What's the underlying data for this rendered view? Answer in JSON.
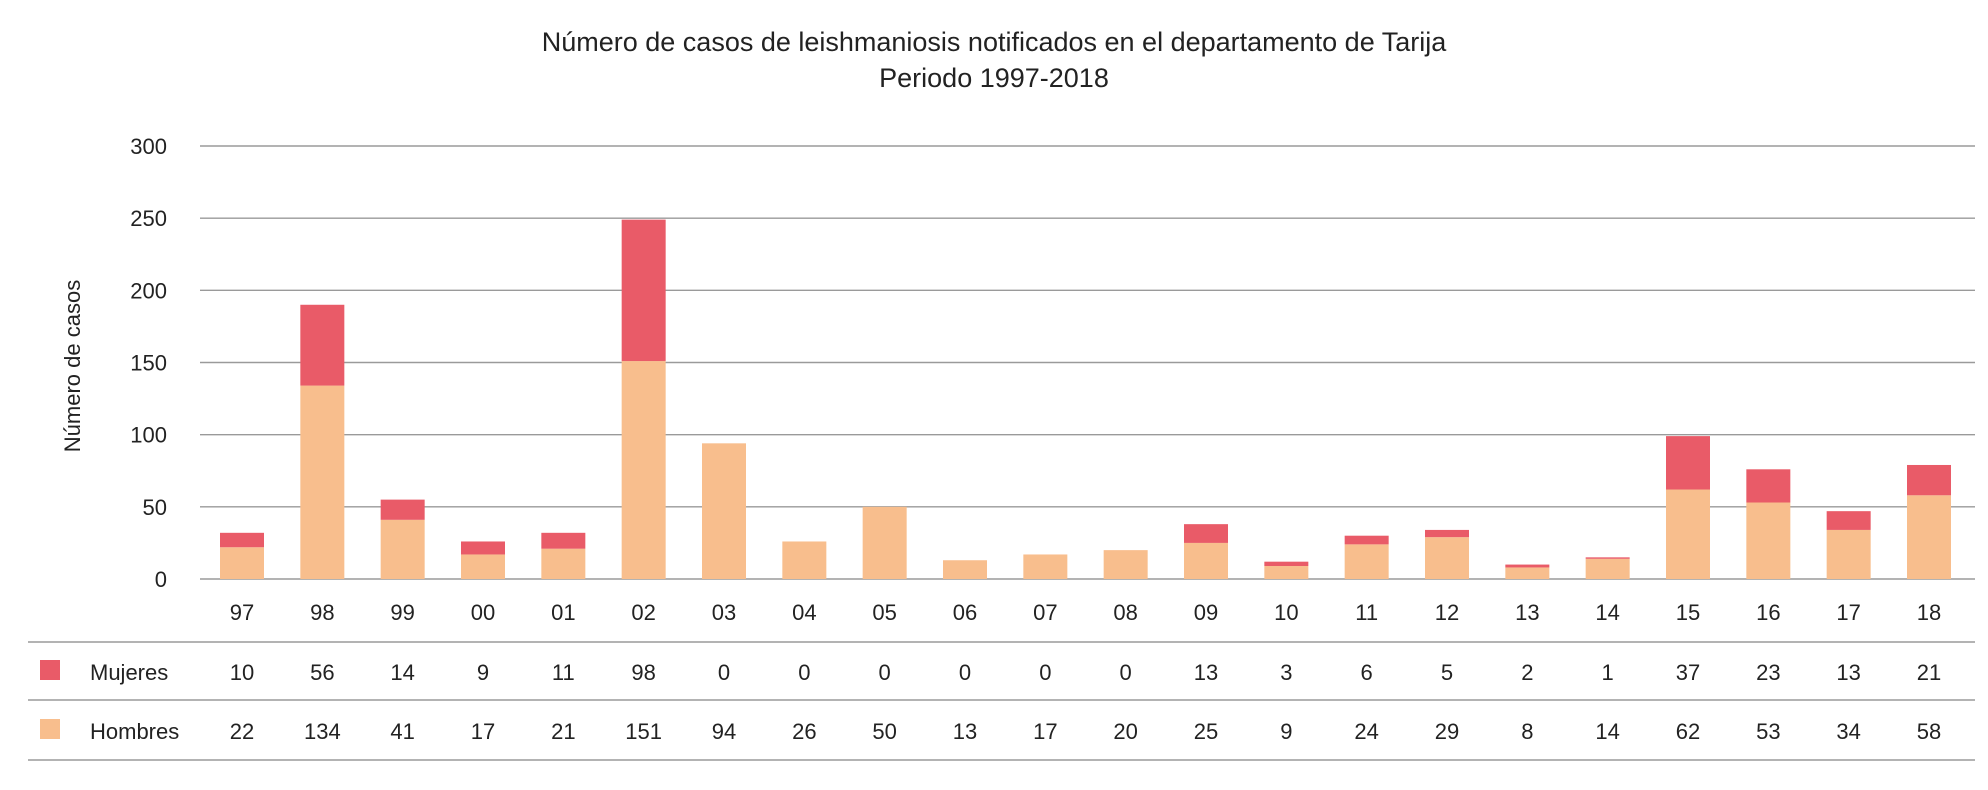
{
  "chart_data": {
    "type": "bar",
    "stacked": true,
    "title": "Número de casos de leishmaniosis notificados en el departamento de Tarija",
    "subtitle": "Periodo 1997-2018",
    "xlabel": "",
    "ylabel": "Número de casos",
    "ylim": [
      0,
      300
    ],
    "yticks": [
      0,
      50,
      100,
      150,
      200,
      250,
      300
    ],
    "grid": true,
    "legend": "data-table-left",
    "categories": [
      "97",
      "98",
      "99",
      "00",
      "01",
      "02",
      "03",
      "04",
      "05",
      "06",
      "07",
      "08",
      "09",
      "10",
      "11",
      "12",
      "13",
      "14",
      "15",
      "16",
      "17",
      "18"
    ],
    "series": [
      {
        "name": "Mujeres",
        "color": "#E95B68",
        "values": [
          10,
          56,
          14,
          9,
          11,
          98,
          0,
          0,
          0,
          0,
          0,
          0,
          13,
          3,
          6,
          5,
          2,
          1,
          37,
          23,
          13,
          21
        ]
      },
      {
        "name": "Hombres",
        "color": "#F8BE8D",
        "values": [
          22,
          134,
          41,
          17,
          21,
          151,
          94,
          26,
          50,
          13,
          17,
          20,
          25,
          9,
          24,
          29,
          8,
          14,
          62,
          53,
          34,
          58
        ]
      }
    ]
  }
}
